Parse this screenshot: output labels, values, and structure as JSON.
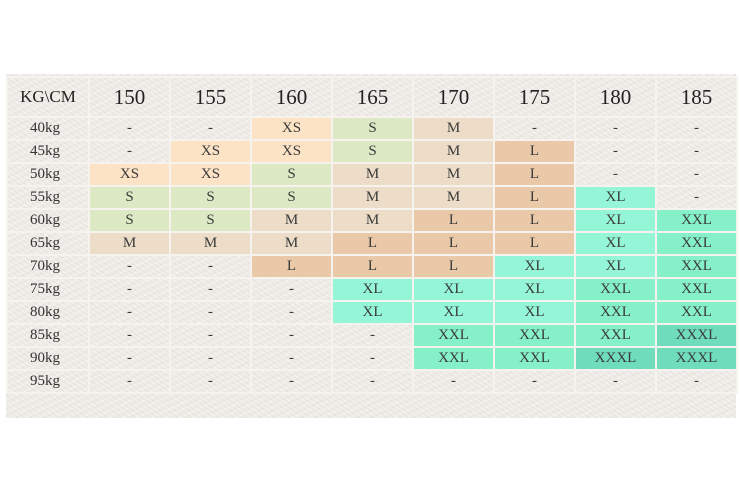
{
  "table": {
    "corner": "KG\\CM",
    "heights": [
      "150",
      "155",
      "160",
      "165",
      "170",
      "175",
      "180",
      "185"
    ],
    "colors": {
      "none": "",
      "xs": "#fde3c6",
      "s": "#dde9c5",
      "m": "#ecdcc8",
      "l": "#e9c9a8",
      "xl": "#94f6d6",
      "xxl": "#86f1c9",
      "xxxl": "#6fdcbb"
    },
    "rows": [
      {
        "weight": "40kg",
        "cells": [
          {
            "text": "-",
            "size": "none"
          },
          {
            "text": "-",
            "size": "none"
          },
          {
            "text": "XS",
            "size": "xs"
          },
          {
            "text": "S",
            "size": "s"
          },
          {
            "text": "M",
            "size": "m"
          },
          {
            "text": "-",
            "size": "none"
          },
          {
            "text": "-",
            "size": "none"
          },
          {
            "text": "-",
            "size": "none"
          }
        ]
      },
      {
        "weight": "45kg",
        "cells": [
          {
            "text": "-",
            "size": "none"
          },
          {
            "text": "XS",
            "size": "xs"
          },
          {
            "text": "XS",
            "size": "xs"
          },
          {
            "text": "S",
            "size": "s"
          },
          {
            "text": "M",
            "size": "m"
          },
          {
            "text": "L",
            "size": "l"
          },
          {
            "text": "-",
            "size": "none"
          },
          {
            "text": "-",
            "size": "none"
          }
        ]
      },
      {
        "weight": "50kg",
        "cells": [
          {
            "text": "XS",
            "size": "xs"
          },
          {
            "text": "XS",
            "size": "xs"
          },
          {
            "text": "S",
            "size": "s"
          },
          {
            "text": "M",
            "size": "m"
          },
          {
            "text": "M",
            "size": "m"
          },
          {
            "text": "L",
            "size": "l"
          },
          {
            "text": "-",
            "size": "none"
          },
          {
            "text": "-",
            "size": "none"
          }
        ]
      },
      {
        "weight": "55kg",
        "cells": [
          {
            "text": "S",
            "size": "s"
          },
          {
            "text": "S",
            "size": "s"
          },
          {
            "text": "S",
            "size": "s"
          },
          {
            "text": "M",
            "size": "m"
          },
          {
            "text": "M",
            "size": "m"
          },
          {
            "text": "L",
            "size": "l"
          },
          {
            "text": "XL",
            "size": "xl"
          },
          {
            "text": "-",
            "size": "none"
          }
        ]
      },
      {
        "weight": "60kg",
        "cells": [
          {
            "text": "S",
            "size": "s"
          },
          {
            "text": "S",
            "size": "s"
          },
          {
            "text": "M",
            "size": "m"
          },
          {
            "text": "M",
            "size": "m"
          },
          {
            "text": "L",
            "size": "l"
          },
          {
            "text": "L",
            "size": "l"
          },
          {
            "text": "XL",
            "size": "xl"
          },
          {
            "text": "XXL",
            "size": "xxl"
          }
        ]
      },
      {
        "weight": "65kg",
        "cells": [
          {
            "text": "M",
            "size": "m"
          },
          {
            "text": "M",
            "size": "m"
          },
          {
            "text": "M",
            "size": "m"
          },
          {
            "text": "L",
            "size": "l"
          },
          {
            "text": "L",
            "size": "l"
          },
          {
            "text": "L",
            "size": "l"
          },
          {
            "text": "XL",
            "size": "xl"
          },
          {
            "text": "XXL",
            "size": "xxl"
          }
        ]
      },
      {
        "weight": "70kg",
        "cells": [
          {
            "text": "-",
            "size": "none"
          },
          {
            "text": "-",
            "size": "none"
          },
          {
            "text": "L",
            "size": "l"
          },
          {
            "text": "L",
            "size": "l"
          },
          {
            "text": "L",
            "size": "l"
          },
          {
            "text": "XL",
            "size": "xl"
          },
          {
            "text": "XL",
            "size": "xl"
          },
          {
            "text": "XXL",
            "size": "xxl"
          }
        ]
      },
      {
        "weight": "75kg",
        "cells": [
          {
            "text": "-",
            "size": "none"
          },
          {
            "text": "-",
            "size": "none"
          },
          {
            "text": "-",
            "size": "none"
          },
          {
            "text": "XL",
            "size": "xl"
          },
          {
            "text": "XL",
            "size": "xl"
          },
          {
            "text": "XL",
            "size": "xl"
          },
          {
            "text": "XXL",
            "size": "xxl"
          },
          {
            "text": "XXL",
            "size": "xxl"
          }
        ]
      },
      {
        "weight": "80kg",
        "cells": [
          {
            "text": "-",
            "size": "none"
          },
          {
            "text": "-",
            "size": "none"
          },
          {
            "text": "-",
            "size": "none"
          },
          {
            "text": "XL",
            "size": "xl"
          },
          {
            "text": "XL",
            "size": "xl"
          },
          {
            "text": "XL",
            "size": "xl"
          },
          {
            "text": "XXL",
            "size": "xxl"
          },
          {
            "text": "XXL",
            "size": "xxl"
          }
        ]
      },
      {
        "weight": "85kg",
        "cells": [
          {
            "text": "-",
            "size": "none"
          },
          {
            "text": "-",
            "size": "none"
          },
          {
            "text": "-",
            "size": "none"
          },
          {
            "text": "-",
            "size": "none"
          },
          {
            "text": "XXL",
            "size": "xxl"
          },
          {
            "text": "XXL",
            "size": "xxl"
          },
          {
            "text": "XXL",
            "size": "xxl"
          },
          {
            "text": "XXXL",
            "size": "xxxl"
          }
        ]
      },
      {
        "weight": "90kg",
        "cells": [
          {
            "text": "-",
            "size": "none"
          },
          {
            "text": "-",
            "size": "none"
          },
          {
            "text": "-",
            "size": "none"
          },
          {
            "text": "-",
            "size": "none"
          },
          {
            "text": "XXL",
            "size": "xxl"
          },
          {
            "text": "XXL",
            "size": "xxl"
          },
          {
            "text": "XXXL",
            "size": "xxxl"
          },
          {
            "text": "XXXL",
            "size": "xxxl"
          }
        ]
      },
      {
        "weight": "95kg",
        "cells": [
          {
            "text": "-",
            "size": "none"
          },
          {
            "text": "-",
            "size": "none"
          },
          {
            "text": "-",
            "size": "none"
          },
          {
            "text": "-",
            "size": "none"
          },
          {
            "text": "-",
            "size": "none"
          },
          {
            "text": "-",
            "size": "none"
          },
          {
            "text": "-",
            "size": "none"
          },
          {
            "text": "-",
            "size": "none"
          }
        ]
      }
    ]
  }
}
